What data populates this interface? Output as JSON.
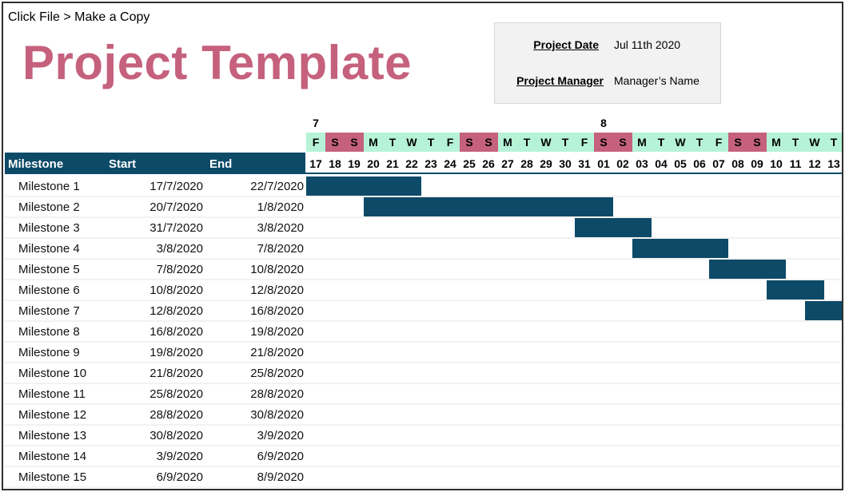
{
  "instruction": "Click File > Make a Copy",
  "title": "Project Template",
  "info": {
    "date_label": "Project Date",
    "date_value": "Jul 11th 2020",
    "manager_label": "Project Manager",
    "manager_value": "Manager’s Name"
  },
  "colors": {
    "bar": "#0d4a68",
    "weekday_bg": "#b6f3d6",
    "weekend_bg": "#c5617d",
    "header_bg": "#0d4a68",
    "title": "#c5617d"
  },
  "chart_data": {
    "type": "bar",
    "subtype": "gantt",
    "columns": [
      "Milestone",
      "Start",
      "End"
    ],
    "month_markers": [
      {
        "label": "7",
        "day_index": 0
      },
      {
        "label": "8",
        "day_index": 15
      }
    ],
    "days": [
      {
        "dow": "F",
        "num": "17",
        "weekend": false
      },
      {
        "dow": "S",
        "num": "18",
        "weekend": true
      },
      {
        "dow": "S",
        "num": "19",
        "weekend": true
      },
      {
        "dow": "M",
        "num": "20",
        "weekend": false
      },
      {
        "dow": "T",
        "num": "21",
        "weekend": false
      },
      {
        "dow": "W",
        "num": "22",
        "weekend": false
      },
      {
        "dow": "T",
        "num": "23",
        "weekend": false
      },
      {
        "dow": "F",
        "num": "24",
        "weekend": false
      },
      {
        "dow": "S",
        "num": "25",
        "weekend": true
      },
      {
        "dow": "S",
        "num": "26",
        "weekend": true
      },
      {
        "dow": "M",
        "num": "27",
        "weekend": false
      },
      {
        "dow": "T",
        "num": "28",
        "weekend": false
      },
      {
        "dow": "W",
        "num": "29",
        "weekend": false
      },
      {
        "dow": "T",
        "num": "30",
        "weekend": false
      },
      {
        "dow": "F",
        "num": "31",
        "weekend": false
      },
      {
        "dow": "S",
        "num": "01",
        "weekend": true
      },
      {
        "dow": "S",
        "num": "02",
        "weekend": true
      },
      {
        "dow": "M",
        "num": "03",
        "weekend": false
      },
      {
        "dow": "T",
        "num": "04",
        "weekend": false
      },
      {
        "dow": "W",
        "num": "05",
        "weekend": false
      },
      {
        "dow": "T",
        "num": "06",
        "weekend": false
      },
      {
        "dow": "F",
        "num": "07",
        "weekend": false
      },
      {
        "dow": "S",
        "num": "08",
        "weekend": true
      },
      {
        "dow": "S",
        "num": "09",
        "weekend": true
      },
      {
        "dow": "M",
        "num": "10",
        "weekend": false
      },
      {
        "dow": "T",
        "num": "11",
        "weekend": false
      },
      {
        "dow": "W",
        "num": "12",
        "weekend": false
      },
      {
        "dow": "T",
        "num": "13",
        "weekend": false
      }
    ],
    "tasks": [
      {
        "name": "Milestone 1",
        "start": "17/7/2020",
        "end": "22/7/2020",
        "start_day": 0,
        "end_day": 6
      },
      {
        "name": "Milestone 2",
        "start": "20/7/2020",
        "end": "1/8/2020",
        "start_day": 3,
        "end_day": 16
      },
      {
        "name": "Milestone 3",
        "start": "31/7/2020",
        "end": "3/8/2020",
        "start_day": 14,
        "end_day": 18
      },
      {
        "name": "Milestone 4",
        "start": "3/8/2020",
        "end": "7/8/2020",
        "start_day": 17,
        "end_day": 22
      },
      {
        "name": "Milestone 5",
        "start": "7/8/2020",
        "end": "10/8/2020",
        "start_day": 21,
        "end_day": 25
      },
      {
        "name": "Milestone 6",
        "start": "10/8/2020",
        "end": "12/8/2020",
        "start_day": 24,
        "end_day": 27
      },
      {
        "name": "Milestone 7",
        "start": "12/8/2020",
        "end": "16/8/2020",
        "start_day": 26,
        "end_day": 28
      },
      {
        "name": "Milestone 8",
        "start": "16/8/2020",
        "end": "19/8/2020"
      },
      {
        "name": "Milestone 9",
        "start": "19/8/2020",
        "end": "21/8/2020"
      },
      {
        "name": "Milestone 10",
        "start": "21/8/2020",
        "end": "25/8/2020"
      },
      {
        "name": "Milestone 11",
        "start": "25/8/2020",
        "end": "28/8/2020"
      },
      {
        "name": "Milestone 12",
        "start": "28/8/2020",
        "end": "30/8/2020"
      },
      {
        "name": "Milestone 13",
        "start": "30/8/2020",
        "end": "3/9/2020"
      },
      {
        "name": "Milestone 14",
        "start": "3/9/2020",
        "end": "6/9/2020"
      },
      {
        "name": "Milestone 15",
        "start": "6/9/2020",
        "end": "8/9/2020"
      }
    ]
  }
}
